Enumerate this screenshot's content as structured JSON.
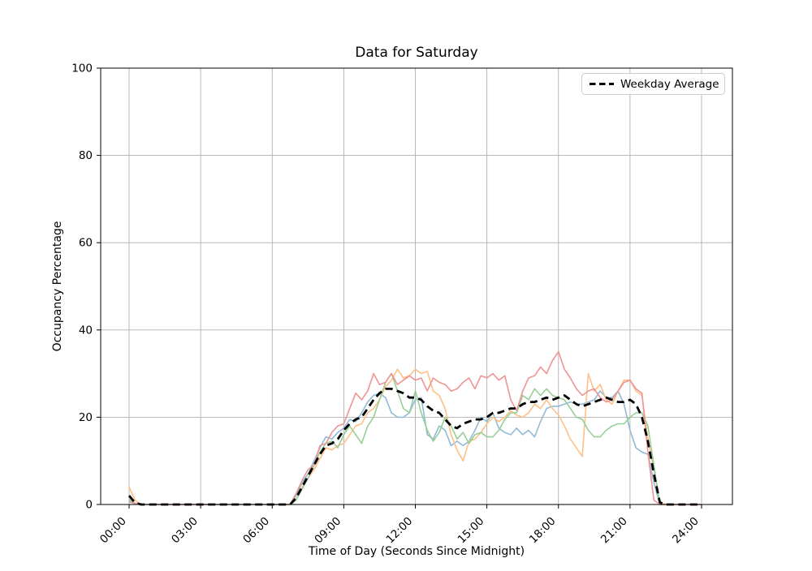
{
  "chart_data": {
    "type": "line",
    "title": "Data for Saturday",
    "xlabel": "Time of Day (Seconds Since Midnight)",
    "ylabel": "Occupancy Percentage",
    "x_tick_labels": [
      "00:00",
      "03:00",
      "06:00",
      "09:00",
      "12:00",
      "15:00",
      "18:00",
      "21:00",
      "24:00"
    ],
    "y_ticks": [
      0,
      20,
      40,
      60,
      80,
      100
    ],
    "ylim": [
      0,
      100
    ],
    "xlim_hours": [
      0,
      24
    ],
    "grid": true,
    "x_start_hour": 0,
    "x_step_hours": 0.25,
    "legend": {
      "position": "upper right",
      "entries": [
        {
          "label": "Weekday Average",
          "color": "#000000",
          "style": "dashed"
        }
      ]
    },
    "series": [
      {
        "name": "saturday-series-1",
        "color": "#8fbbd9",
        "width": 1.6,
        "dash": "",
        "values": [
          0.6,
          0.2,
          0,
          0,
          0,
          0,
          0,
          0,
          0,
          0,
          0,
          0,
          0,
          0,
          0,
          0,
          0,
          0,
          0,
          0,
          0,
          0,
          0,
          0,
          0,
          0,
          0,
          0,
          2,
          5,
          7,
          10,
          13,
          15.5,
          15,
          16.5,
          17.5,
          19.5,
          19,
          21,
          23.5,
          25,
          25.5,
          24.5,
          21,
          20,
          20,
          21,
          24,
          24.5,
          16,
          15,
          18,
          17,
          13.5,
          14.5,
          13.5,
          14.5,
          17,
          20,
          19,
          21,
          17.5,
          16.5,
          16,
          17.5,
          16,
          17,
          15.5,
          19,
          22,
          22.5,
          22.5,
          23,
          23.5,
          23,
          23,
          23.5,
          24,
          26,
          24.5,
          24.5,
          26,
          23,
          17,
          13,
          12,
          11.5,
          5,
          0,
          0,
          0,
          0,
          0,
          0,
          0,
          0
        ]
      },
      {
        "name": "saturday-series-2",
        "color": "#ffbf86",
        "width": 1.6,
        "dash": "",
        "values": [
          4,
          1,
          0,
          0,
          0,
          0,
          0,
          0,
          0,
          0,
          0,
          0,
          0,
          0,
          0,
          0,
          0,
          0,
          0,
          0,
          0,
          0,
          0,
          0,
          0,
          0,
          0,
          0,
          1,
          4,
          6,
          8,
          10.5,
          13,
          12.5,
          13.5,
          14,
          16,
          18,
          18.5,
          21,
          22,
          24,
          27,
          28.5,
          31,
          29,
          29.5,
          31,
          30,
          30.5,
          26,
          25,
          22,
          16,
          12.5,
          10,
          14.5,
          15,
          16.5,
          18.5,
          20,
          19,
          20,
          21.5,
          20.5,
          20,
          21,
          23,
          22,
          24,
          22,
          20.5,
          18,
          15,
          13,
          11,
          30,
          26,
          27.5,
          24,
          23,
          26,
          28.5,
          28.5,
          26,
          25,
          15,
          8,
          0.5,
          0,
          0,
          0,
          0,
          0,
          0,
          0
        ]
      },
      {
        "name": "saturday-series-3",
        "color": "#96cf96",
        "width": 1.6,
        "dash": "",
        "values": [
          1.2,
          0.3,
          0,
          0,
          0,
          0,
          0,
          0,
          0,
          0,
          0,
          0,
          0,
          0,
          0,
          0,
          0,
          0,
          0,
          0,
          0,
          0,
          0,
          0,
          0,
          0,
          0,
          0,
          1,
          3.5,
          6,
          9,
          12,
          14,
          14.5,
          13,
          16,
          18,
          16,
          14,
          18,
          20,
          24,
          28,
          30,
          26,
          22,
          21,
          26,
          21,
          17,
          14.5,
          16.5,
          20,
          18,
          15,
          16.5,
          14,
          16,
          16.5,
          15.5,
          15.5,
          17,
          19.5,
          21,
          21,
          25,
          24,
          26.5,
          25,
          26.5,
          25,
          24.5,
          24,
          22,
          20,
          19.5,
          17,
          15.5,
          15.5,
          17,
          18,
          18.5,
          18.5,
          20,
          21,
          21,
          18,
          9,
          0,
          0,
          0,
          0,
          0,
          0,
          0,
          0
        ]
      },
      {
        "name": "saturday-series-4",
        "color": "#ee9495",
        "width": 1.6,
        "dash": "",
        "values": [
          0.8,
          0.2,
          0,
          0,
          0,
          0,
          0,
          0,
          0,
          0,
          0,
          0,
          0,
          0,
          0,
          0,
          0,
          0,
          0,
          0,
          0,
          0,
          0,
          0,
          0,
          0,
          0,
          0,
          2.5,
          5.5,
          8,
          9,
          13.5,
          14,
          16.5,
          18,
          18.5,
          22,
          25.5,
          24,
          26,
          30,
          27.5,
          28,
          30,
          27.5,
          28.5,
          29.5,
          28.5,
          29,
          26,
          29,
          28,
          27.5,
          26,
          26.5,
          28,
          29,
          26.5,
          29.5,
          29,
          30,
          28.5,
          29.5,
          24,
          21.5,
          26,
          29,
          29.5,
          31.5,
          30,
          33,
          35,
          31,
          29,
          26.5,
          25,
          26,
          26.5,
          24.5,
          23.5,
          24,
          26,
          28,
          28.5,
          26.5,
          25.5,
          12,
          1,
          0,
          0,
          0,
          0,
          0,
          0,
          0,
          0
        ]
      },
      {
        "name": "weekday-average",
        "color": "#000000",
        "width": 2.8,
        "dash": "9 5.5",
        "values": [
          2,
          0.4,
          0,
          0,
          0,
          0,
          0,
          0,
          0,
          0,
          0,
          0,
          0,
          0,
          0,
          0,
          0,
          0,
          0,
          0,
          0,
          0,
          0,
          0,
          0,
          0,
          0,
          0,
          1.5,
          4,
          6.5,
          9,
          11.5,
          13.5,
          14,
          15,
          17,
          18.5,
          19.5,
          20,
          22,
          24,
          25.5,
          26.5,
          26.5,
          26,
          25.5,
          24.5,
          24.5,
          24,
          22.5,
          21.5,
          21,
          19.5,
          18,
          17.5,
          18.5,
          19,
          19.5,
          19.5,
          20,
          21,
          21,
          21.5,
          22,
          22,
          23,
          23.5,
          23.5,
          24,
          24.5,
          24,
          24.5,
          25,
          24,
          23,
          22.5,
          23,
          23.5,
          24,
          24.5,
          24,
          23.5,
          23.5,
          24,
          23,
          20,
          14.5,
          7,
          0.5,
          0,
          0,
          0,
          0,
          0,
          0,
          0
        ]
      }
    ]
  }
}
